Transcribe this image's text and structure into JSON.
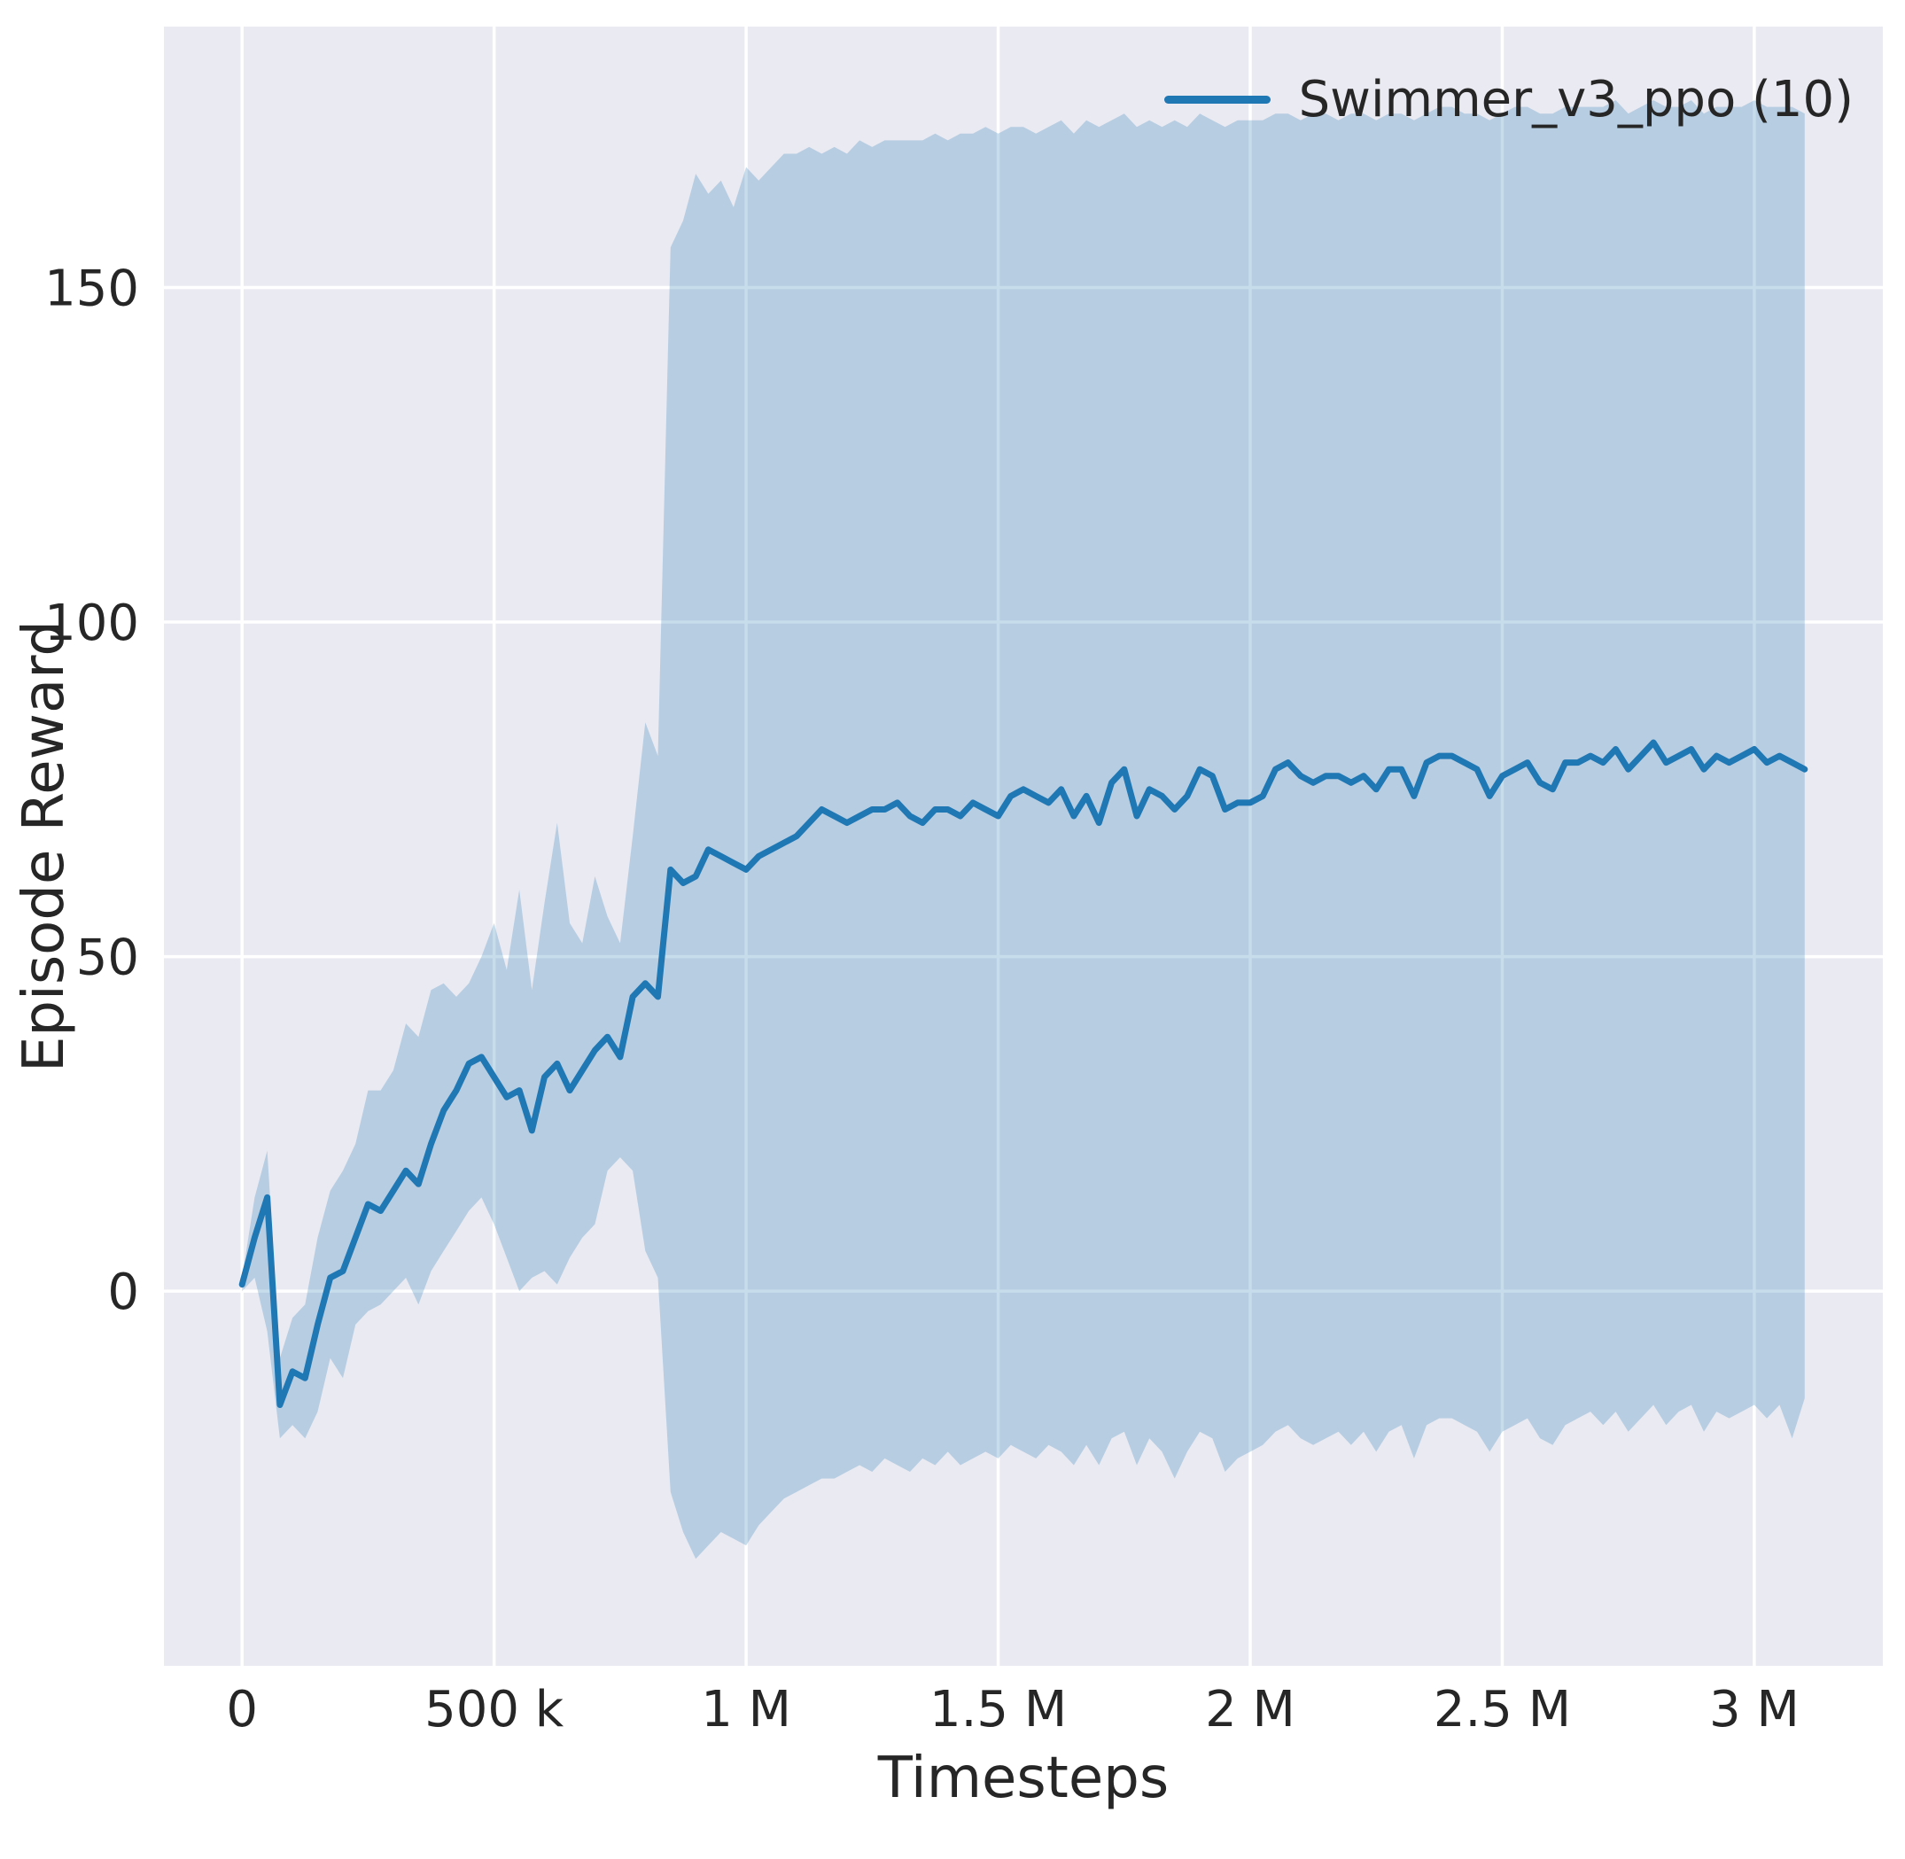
{
  "chart_data": {
    "type": "line",
    "title": "",
    "xlabel": "Timesteps",
    "ylabel": "Episode Reward",
    "legend_label": "Swimmer_v3_ppo (10)",
    "legend_position": "upper right",
    "grid": true,
    "xlim": [
      -155000,
      3255000
    ],
    "ylim": [
      -56,
      189
    ],
    "xticks": [
      {
        "value": 0,
        "label": "0"
      },
      {
        "value": 500000,
        "label": "500 k"
      },
      {
        "value": 1000000,
        "label": "1 M"
      },
      {
        "value": 1500000,
        "label": "1.5 M"
      },
      {
        "value": 2000000,
        "label": "2 M"
      },
      {
        "value": 2500000,
        "label": "2.5 M"
      },
      {
        "value": 3000000,
        "label": "3 M"
      }
    ],
    "yticks": [
      {
        "value": 0,
        "label": "0"
      },
      {
        "value": 50,
        "label": "50"
      },
      {
        "value": 100,
        "label": "100"
      },
      {
        "value": 150,
        "label": "150"
      }
    ],
    "x_start": 0,
    "x_step": 25000,
    "series": [
      {
        "name": "Swimmer_v3_ppo (10)",
        "mean": [
          1,
          8,
          14,
          -17,
          -12,
          -13,
          -5,
          2,
          3,
          8,
          13,
          12,
          15,
          18,
          16,
          22,
          27,
          30,
          34,
          35,
          32,
          29,
          30,
          24,
          32,
          34,
          30,
          33,
          36,
          38,
          35,
          44,
          46,
          44,
          63,
          61,
          62,
          66,
          65,
          64,
          63,
          65,
          66,
          67,
          68,
          70,
          72,
          71,
          70,
          71,
          72,
          72,
          73,
          71,
          70,
          72,
          72,
          71,
          73,
          72,
          71,
          74,
          75,
          74,
          73,
          75,
          71,
          74,
          70,
          76,
          78,
          71,
          75,
          74,
          72,
          74,
          78,
          77,
          72,
          73,
          73,
          74,
          78,
          79,
          77,
          76,
          77,
          77,
          76,
          77,
          75,
          78,
          78,
          74,
          79,
          80,
          80,
          79,
          78,
          74,
          77,
          78,
          79,
          76,
          75,
          79,
          79,
          80,
          79,
          81,
          78,
          80,
          82,
          79,
          80,
          81,
          78,
          80,
          79,
          80,
          81,
          79,
          80,
          79,
          78
        ],
        "band_high": [
          2,
          14,
          21,
          -10,
          -4,
          -2,
          8,
          15,
          18,
          22,
          30,
          30,
          33,
          40,
          38,
          45,
          46,
          44,
          46,
          50,
          55,
          48,
          60,
          45,
          58,
          70,
          55,
          52,
          62,
          56,
          52,
          68,
          85,
          80,
          156,
          160,
          167,
          164,
          166,
          162,
          168,
          166,
          168,
          170,
          170,
          171,
          170,
          171,
          170,
          172,
          171,
          172,
          172,
          172,
          172,
          173,
          172,
          173,
          173,
          174,
          173,
          174,
          174,
          173,
          174,
          175,
          173,
          175,
          174,
          175,
          176,
          174,
          175,
          174,
          175,
          174,
          176,
          175,
          174,
          175,
          175,
          175,
          176,
          176,
          175,
          176,
          176,
          175,
          176,
          176,
          175,
          176,
          176,
          175,
          176,
          177,
          177,
          176,
          176,
          175,
          176,
          177,
          177,
          176,
          176,
          177,
          177,
          177,
          177,
          178,
          176,
          177,
          178,
          177,
          177,
          178,
          176,
          177,
          177,
          177,
          178,
          177,
          177,
          177,
          176
        ],
        "band_low": [
          0,
          2,
          -6,
          -22,
          -20,
          -22,
          -18,
          -10,
          -13,
          -5,
          -3,
          -2,
          0,
          2,
          -2,
          3,
          6,
          9,
          12,
          14,
          10,
          5,
          0,
          2,
          3,
          1,
          5,
          8,
          10,
          18,
          20,
          18,
          6,
          2,
          -30,
          -36,
          -40,
          -38,
          -36,
          -37,
          -38,
          -35,
          -33,
          -31,
          -30,
          -29,
          -28,
          -28,
          -27,
          -26,
          -27,
          -25,
          -26,
          -27,
          -25,
          -26,
          -24,
          -26,
          -25,
          -24,
          -25,
          -23,
          -24,
          -25,
          -23,
          -24,
          -26,
          -23,
          -26,
          -22,
          -21,
          -26,
          -22,
          -24,
          -28,
          -24,
          -21,
          -22,
          -27,
          -25,
          -24,
          -23,
          -21,
          -20,
          -22,
          -23,
          -22,
          -21,
          -23,
          -21,
          -24,
          -21,
          -20,
          -25,
          -20,
          -19,
          -19,
          -20,
          -21,
          -24,
          -21,
          -20,
          -19,
          -22,
          -23,
          -20,
          -19,
          -18,
          -20,
          -18,
          -21,
          -19,
          -17,
          -20,
          -18,
          -17,
          -21,
          -18,
          -19,
          -18,
          -17,
          -19,
          -17,
          -22,
          -16
        ]
      }
    ],
    "colors": {
      "accent": "#1f77b4",
      "band_fill": "rgba(31,119,180,0.25)",
      "plot_bg": "#eaeaf2",
      "grid": "#ffffff",
      "text": "#262626",
      "figure_bg": "#ffffff"
    }
  }
}
